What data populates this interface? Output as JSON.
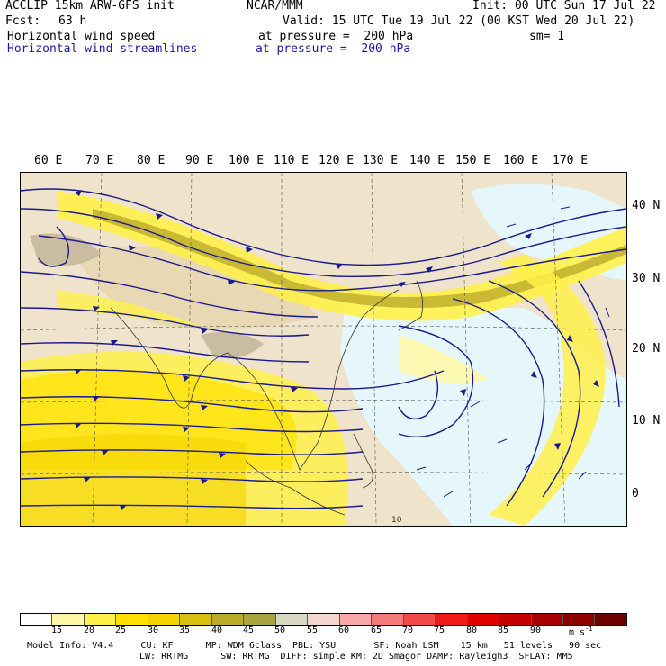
{
  "header": {
    "model": "ACCLIP 15km ARW-GFS init",
    "org": "NCAR/MMM",
    "init": "Init: 00 UTC Sun 17 Jul 22",
    "fcst_label": "Fcst:",
    "fcst_value": "63 h",
    "valid": "Valid: 15 UTC Tue 19 Jul 22 (00 KST Wed 20 Jul 22)",
    "field1": "Horizontal wind speed",
    "field1_level": "at pressure =  200 hPa",
    "sm": "sm= 1",
    "field2": "Horizontal wind streamlines",
    "field2_level": "at pressure =  200 hPa"
  },
  "longitude_labels": [
    "60 E",
    "70 E",
    "80 E",
    "90 E",
    "100 E",
    "110 E",
    "120 E",
    "130 E",
    "140 E",
    "150 E",
    "160 E",
    "170 E"
  ],
  "latitude_labels": [
    "40 N",
    "30 N",
    "20 N",
    "10 N",
    "0"
  ],
  "map": {
    "feature": "island-label",
    "label": "10"
  },
  "colorbar": {
    "labels": [
      "15",
      "20",
      "25",
      "30",
      "35",
      "40",
      "45",
      "50",
      "55",
      "60",
      "65",
      "70",
      "75",
      "80",
      "85",
      "90"
    ],
    "unit": "m s",
    "unit_exp": "-1",
    "colors": [
      "#ffffff",
      "#fff7a8",
      "#fff04a",
      "#ffe100",
      "#f3d400",
      "#d8c013",
      "#bcab2b",
      "#a8a440",
      "#d8d8c4",
      "#f5d6cf",
      "#f8a8a8",
      "#f47a7a",
      "#f24a4a",
      "#ee1a1a",
      "#e00000",
      "#c40000",
      "#a80000",
      "#8c0000",
      "#6e0000"
    ]
  },
  "footer": {
    "line1": "Model Info: V4.4     CU: KF      MP: WDM 6class  PBL: YSU       SF: Noah LSM    15 km   51 levels   90 sec",
    "line2": "LW: RRTMG      SW: RRTMG  DIFF: simple KM: 2D Smagor DAMP: Rayleigh3  SFLAY: MM5"
  }
}
